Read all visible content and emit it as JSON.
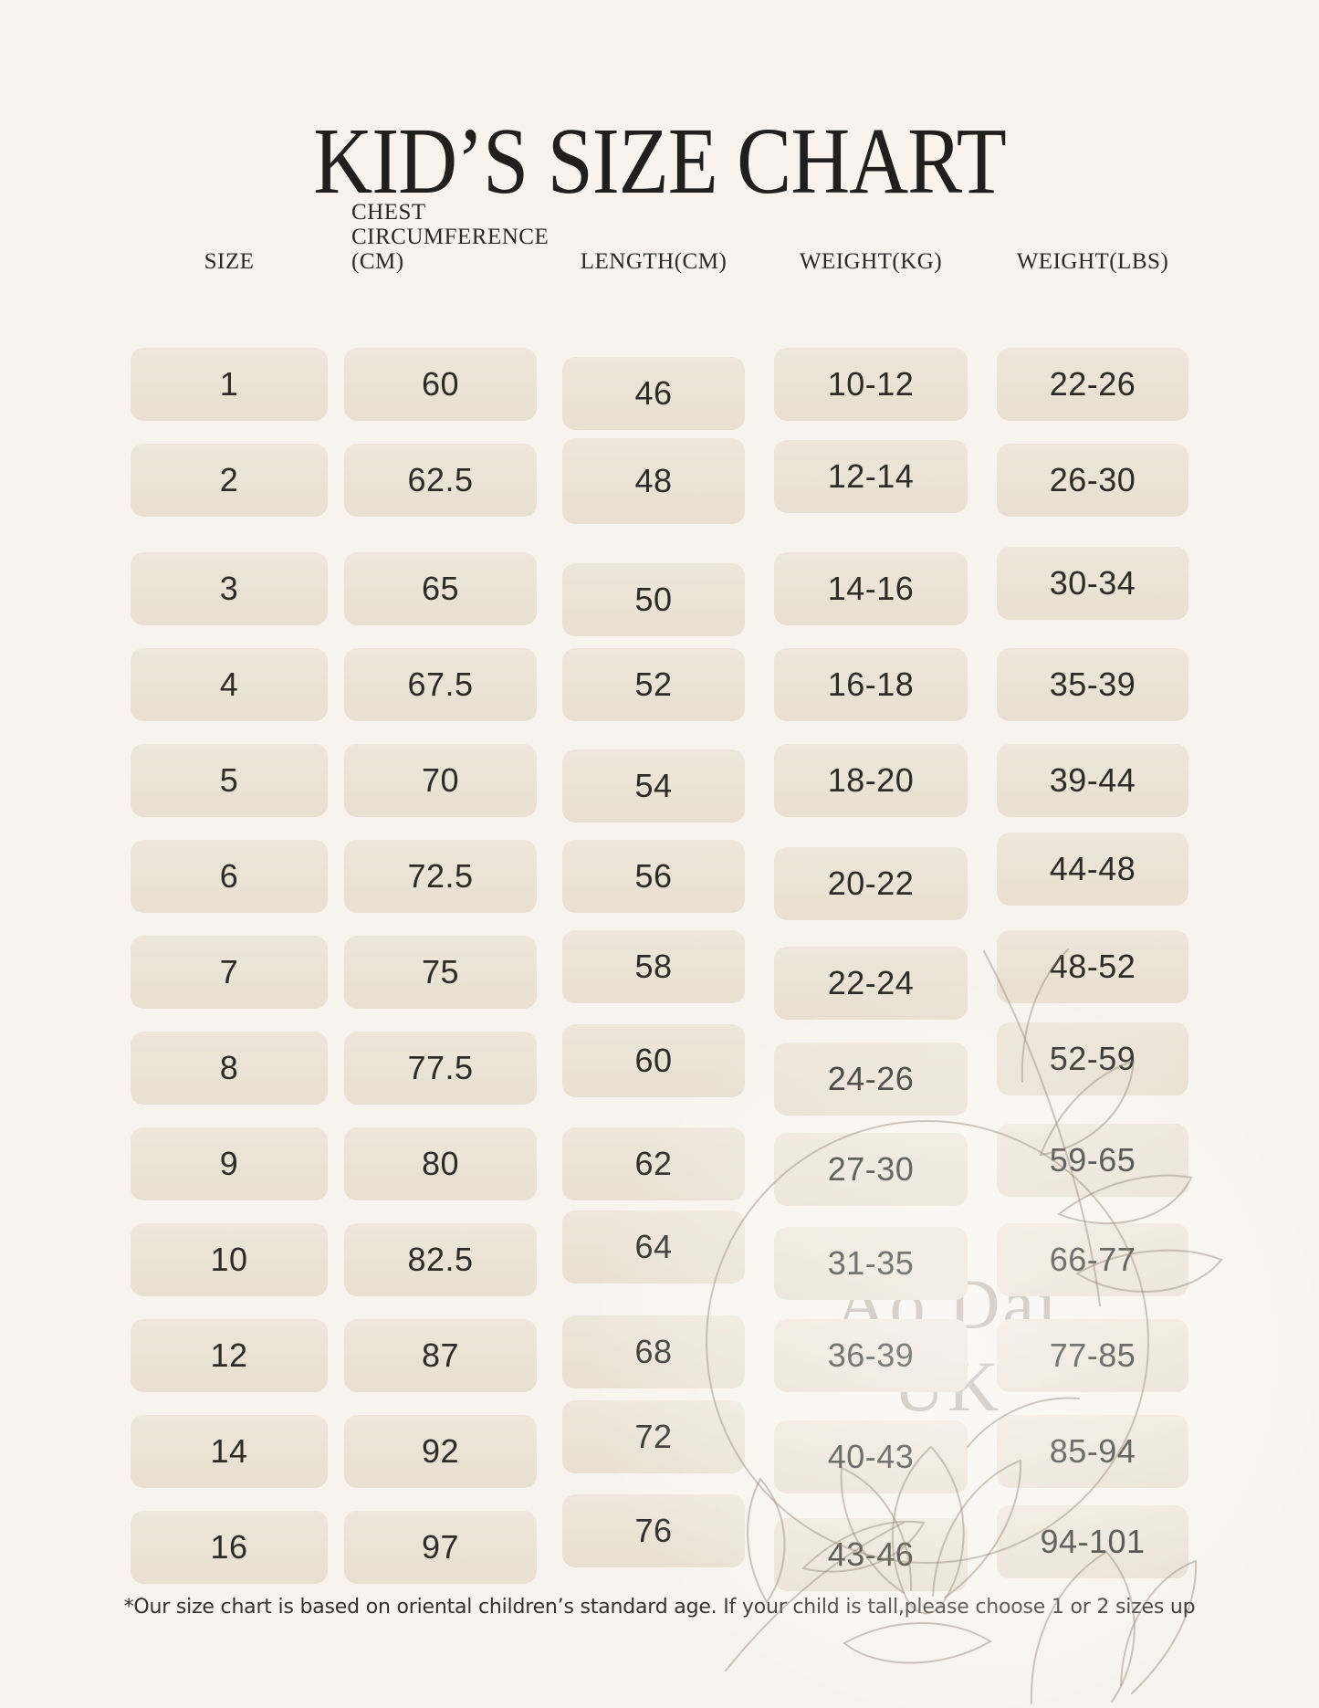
{
  "page": {
    "background_color": "#f8f4ed",
    "cell_color": "#ece2d6",
    "title_color": "#211f1c",
    "text_color": "#2e2b27",
    "watermark_color": "#8f8274"
  },
  "watermark": {
    "line1": "Ao Dài",
    "line2": "UK"
  },
  "chart_data": {
    "type": "table",
    "title": "KID’S SIZE CHART",
    "columns": [
      "SIZE",
      "CHEST CIRCUMFERENCE (CM)",
      "LENGTH(CM)",
      "WEIGHT(KG)",
      "WEIGHT(LBS)"
    ],
    "rows": [
      [
        "1",
        "60",
        "46",
        "10-12",
        "22-26"
      ],
      [
        "2",
        "62.5",
        "48",
        "12-14",
        "26-30"
      ],
      [
        "3",
        "65",
        "50",
        "14-16",
        "30-34"
      ],
      [
        "4",
        "67.5",
        "52",
        "16-18",
        "35-39"
      ],
      [
        "5",
        "70",
        "54",
        "18-20",
        "39-44"
      ],
      [
        "6",
        "72.5",
        "56",
        "20-22",
        "44-48"
      ],
      [
        "7",
        "75",
        "58",
        "22-24",
        "48-52"
      ],
      [
        "8",
        "77.5",
        "60",
        "24-26",
        "52-59"
      ],
      [
        "9",
        "80",
        "62",
        "27-30",
        "59-65"
      ],
      [
        "10",
        "82.5",
        "64",
        "31-35",
        "66-77"
      ],
      [
        "12",
        "87",
        "68",
        "36-39",
        "77-85"
      ],
      [
        "14",
        "92",
        "72",
        "40-43",
        "85-94"
      ],
      [
        "16",
        "97",
        "76",
        "43-46",
        "94-101"
      ]
    ],
    "footnote": "*Our size chart is based on oriental children’s standard age. If your child is tall,please choose 1 or 2 sizes up",
    "layout": {
      "grid": false,
      "legend": "none",
      "column_alignment": "center"
    }
  }
}
